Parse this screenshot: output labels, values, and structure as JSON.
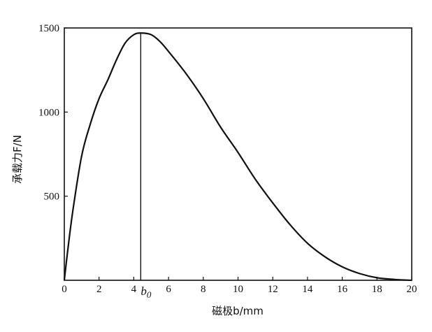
{
  "chart_data": {
    "type": "line",
    "title": "",
    "xlabel": "磁极b/mm",
    "ylabel": "承载力F/N",
    "xlim": [
      0,
      20
    ],
    "ylim": [
      0,
      1500
    ],
    "x_ticks": [
      "0",
      "2",
      "4",
      "6",
      "8",
      "10",
      "12",
      "14",
      "16",
      "18",
      "20"
    ],
    "x_tick_values": [
      0,
      2,
      4,
      6,
      8,
      10,
      12,
      14,
      16,
      18,
      20
    ],
    "y_ticks": [
      "500",
      "1000",
      "1500"
    ],
    "y_tick_values": [
      500,
      1000,
      1500
    ],
    "grid": false,
    "series": [
      {
        "x": [
          0,
          0.2,
          0.5,
          1,
          1.5,
          2,
          2.5,
          3,
          3.5,
          4,
          4.4,
          5,
          5.5,
          6,
          7,
          8,
          9,
          10,
          11,
          12,
          13,
          14,
          15,
          16,
          17,
          18,
          19,
          20
        ],
        "values": [
          0,
          180,
          420,
          740,
          930,
          1080,
          1190,
          1310,
          1410,
          1460,
          1470,
          1460,
          1420,
          1360,
          1230,
          1080,
          910,
          760,
          600,
          460,
          330,
          220,
          140,
          80,
          40,
          15,
          5,
          0
        ]
      }
    ],
    "annotations": [
      {
        "label_main": "b",
        "label_sub": "0",
        "x": 4.4
      }
    ]
  }
}
